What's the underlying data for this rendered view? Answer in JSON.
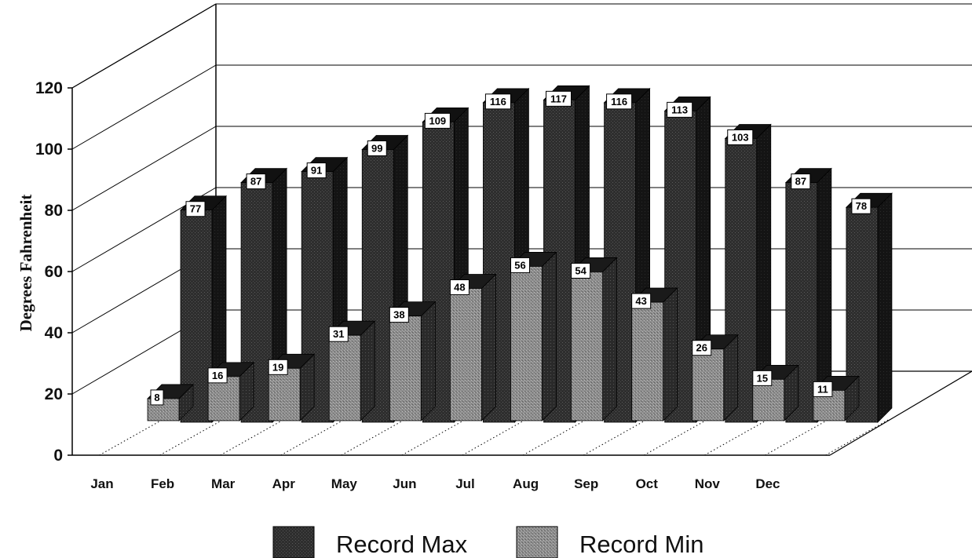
{
  "chart_data": {
    "type": "bar",
    "title": "",
    "xlabel": "",
    "ylabel": "Degrees Fahrenheit",
    "ylim": [
      0,
      120
    ],
    "yticks": [
      0,
      20,
      40,
      60,
      80,
      100,
      120
    ],
    "grid": true,
    "legend_position": "bottom-center",
    "categories": [
      "Jan",
      "Feb",
      "Mar",
      "Apr",
      "May",
      "Jun",
      "Jul",
      "Aug",
      "Sep",
      "Oct",
      "Nov",
      "Dec"
    ],
    "series": [
      {
        "name": "Record Max",
        "values": [
          77,
          87,
          91,
          99,
          109,
          116,
          117,
          116,
          113,
          103,
          87,
          78
        ],
        "labels": [
          "77",
          "87",
          "91",
          "99",
          "109",
          "116",
          "117",
          "116",
          "113",
          "103",
          "87",
          "78"
        ],
        "color": "#262626"
      },
      {
        "name": "Record Min",
        "values": [
          8,
          16,
          19,
          31,
          38,
          48,
          56,
          54,
          43,
          26,
          15,
          11
        ],
        "labels": [
          "8",
          "16",
          "19",
          "31",
          "38",
          "48",
          "56",
          "54",
          "43",
          "26",
          "15",
          "11"
        ],
        "color": "#7a7a7a"
      }
    ]
  }
}
